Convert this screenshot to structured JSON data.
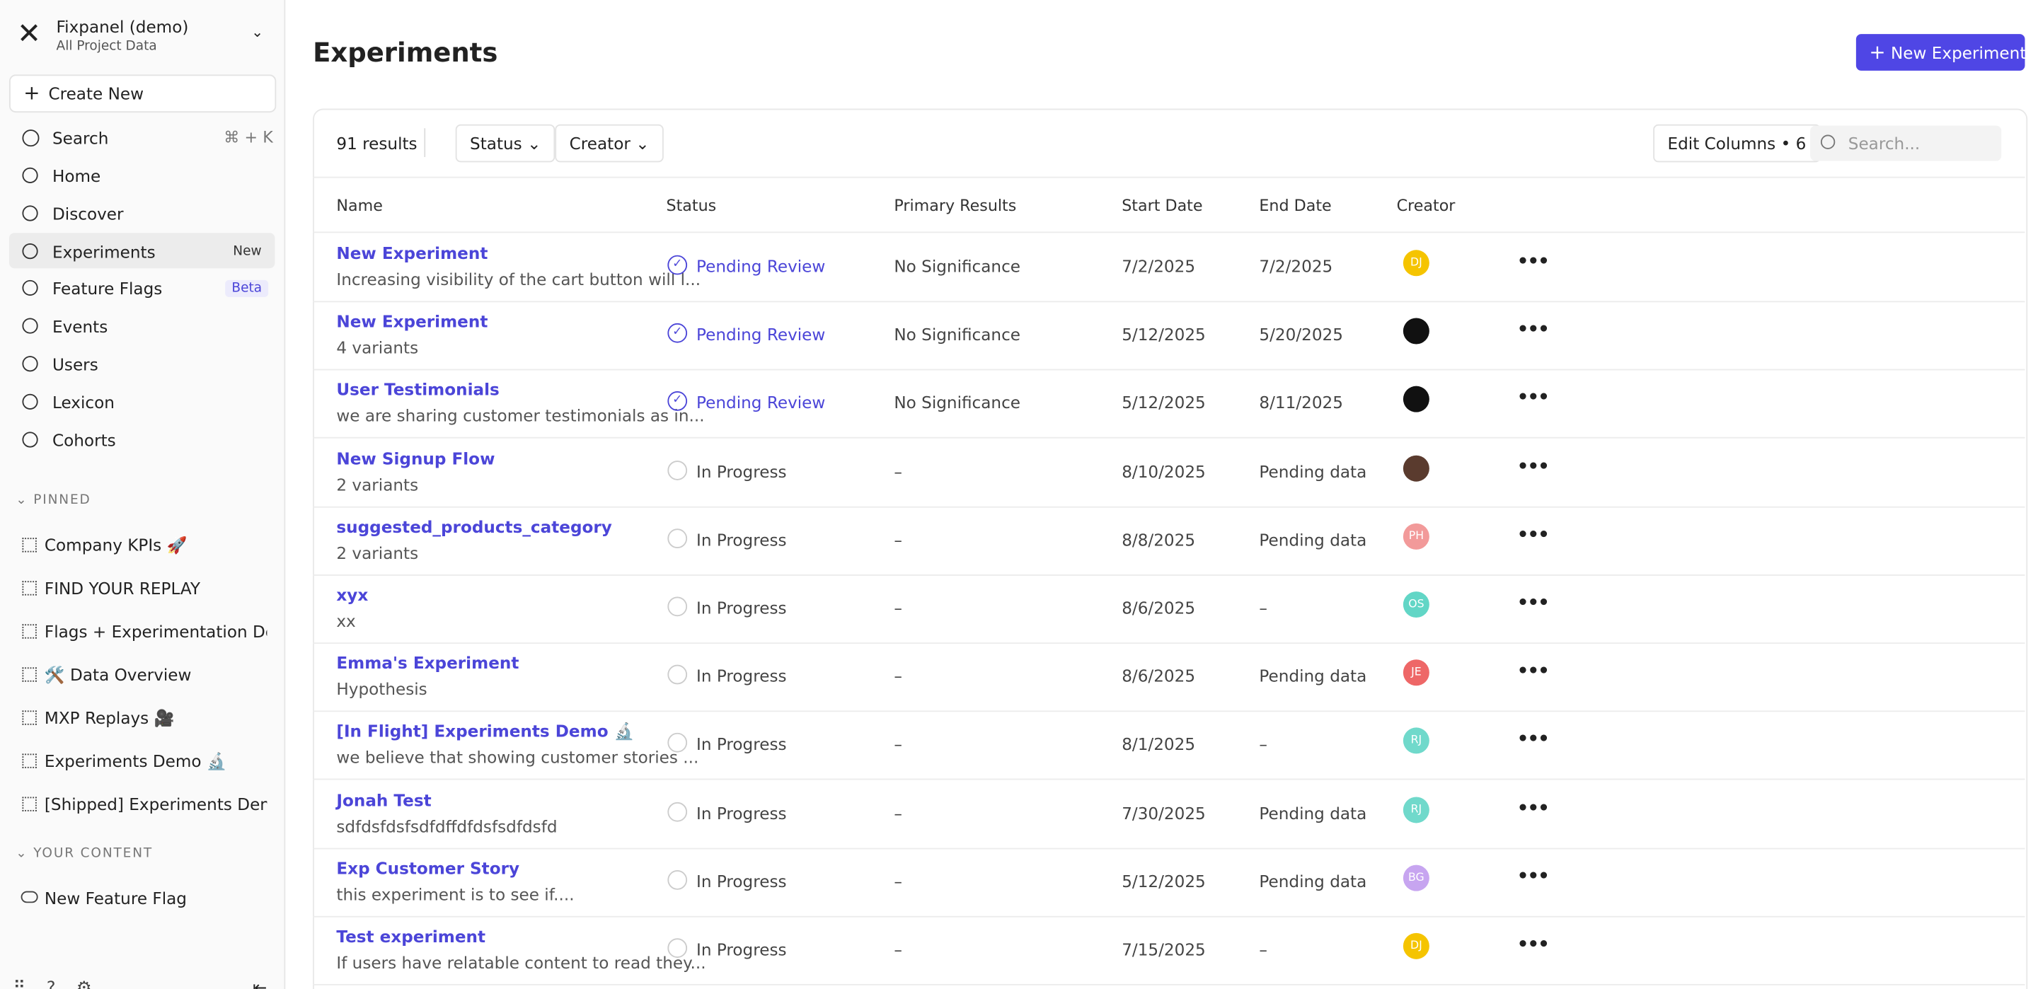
{
  "sidebar": {
    "project": "Fixpanel (demo)",
    "project_sub": "All Project Data",
    "create_new": "Create New",
    "search": "Search",
    "search_shortcut": "⌘ + K",
    "nav": [
      {
        "label": "Home"
      },
      {
        "label": "Discover"
      },
      {
        "label": "Experiments",
        "badge": "New"
      },
      {
        "label": "Feature Flags",
        "badge": "Beta"
      },
      {
        "label": "Events"
      },
      {
        "label": "Users"
      },
      {
        "label": "Lexicon"
      },
      {
        "label": "Cohorts"
      }
    ],
    "pinned_title": "PINNED",
    "pinned": [
      "Company KPIs 🚀",
      "FIND YOUR REPLAY",
      "Flags + Experimentation Demo",
      "🛠️ Data Overview",
      "MXP Replays 🎥",
      "Experiments Demo 🔬",
      "[Shipped] Experiments Demo ✅"
    ],
    "your_content_title": "YOUR CONTENT",
    "your_content": [
      "New Feature Flag"
    ]
  },
  "header": {
    "title": "Experiments",
    "new_button": "New Experiment"
  },
  "toolbar": {
    "results": "91 results",
    "filters": [
      "Status",
      "Creator"
    ],
    "edit_columns": "Edit Columns • 6",
    "search_placeholder": "Search..."
  },
  "table": {
    "columns": [
      "Name",
      "Status",
      "Primary Results",
      "Start Date",
      "End Date",
      "Creator"
    ],
    "rows": [
      {
        "name": "New Experiment",
        "desc": "Increasing visibility of the cart button will l...",
        "status": "Pending Review",
        "primary": "No Significance",
        "start": "7/2/2025",
        "end": "7/2/2025",
        "creator": "DJ",
        "creator_color": "#f5c400"
      },
      {
        "name": "New Experiment",
        "desc": "4 variants",
        "status": "Pending Review",
        "primary": "No Significance",
        "start": "5/12/2025",
        "end": "5/20/2025",
        "creator_color": "#111111"
      },
      {
        "name": "User Testimonials",
        "desc": "we are sharing customer testimonials as in...",
        "status": "Pending Review",
        "primary": "No Significance",
        "start": "5/12/2025",
        "end": "8/11/2025",
        "creator_color": "#111111"
      },
      {
        "name": "New Signup Flow",
        "desc": "2 variants",
        "status": "In Progress",
        "primary": "–",
        "start": "8/10/2025",
        "end": "Pending data",
        "creator_color": "#5a3b2e"
      },
      {
        "name": "suggested_products_category",
        "desc": "2 variants",
        "status": "In Progress",
        "primary": "–",
        "start": "8/8/2025",
        "end": "Pending data",
        "creator": "PH",
        "creator_color": "#f29a9a"
      },
      {
        "name": "xyx",
        "desc": "xx",
        "status": "In Progress",
        "primary": "–",
        "start": "8/6/2025",
        "end": "–",
        "creator": "OS",
        "creator_color": "#62d6c6"
      },
      {
        "name": "Emma's Experiment",
        "desc": "Hypothesis",
        "status": "In Progress",
        "primary": "–",
        "start": "8/6/2025",
        "end": "Pending data",
        "creator": "JE",
        "creator_color": "#ee6767"
      },
      {
        "name": "[In Flight] Experiments Demo 🔬",
        "desc": "we believe that showing customer stories ...",
        "status": "In Progress",
        "primary": "–",
        "start": "8/1/2025",
        "end": "–",
        "creator": "RJ",
        "creator_color": "#70d9cb"
      },
      {
        "name": "Jonah Test",
        "desc": "sdfdsfdsfsdfdffdfdsfsdfdsfd",
        "status": "In Progress",
        "primary": "–",
        "start": "7/30/2025",
        "end": "Pending data",
        "creator": "RJ",
        "creator_color": "#70d9cb"
      },
      {
        "name": "Exp Customer Story",
        "desc": "this experiment is to see if....",
        "status": "In Progress",
        "primary": "–",
        "start": "5/12/2025",
        "end": "Pending data",
        "creator": "BG",
        "creator_color": "#c7a5f0"
      },
      {
        "name": "Test experiment",
        "desc": "If users have relatable content to read they...",
        "status": "In Progress",
        "primary": "–",
        "start": "7/15/2025",
        "end": "–",
        "creator": "DJ",
        "creator_color": "#f5c400"
      }
    ]
  }
}
